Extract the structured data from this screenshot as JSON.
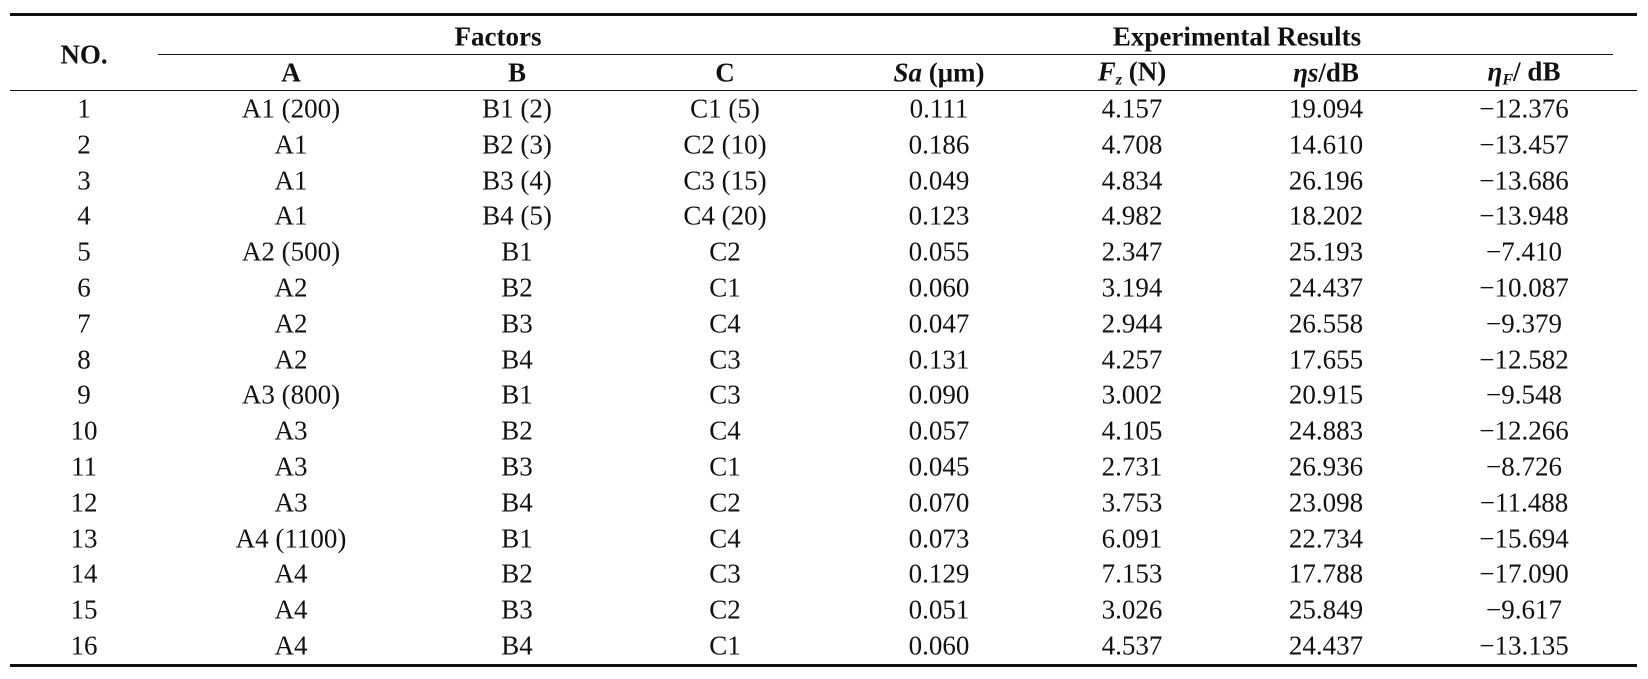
{
  "header": {
    "no": "NO.",
    "groups": [
      "Factors",
      "Experimental Results"
    ],
    "columns": [
      {
        "text": "A"
      },
      {
        "text": "B"
      },
      {
        "text": "C"
      },
      {
        "italic": "Sa",
        "text": " (μm)"
      },
      {
        "italic": "F",
        "sub": "z",
        "text": " (N)"
      },
      {
        "italic": "ηs",
        "text": "/dB"
      },
      {
        "italic": "η",
        "sub": "F",
        "text": "/ dB"
      }
    ]
  },
  "table": {
    "rows": [
      [
        "1",
        "A1 (200)",
        "B1 (2)",
        "C1 (5)",
        "0.111",
        "4.157",
        "19.094",
        "−12.376"
      ],
      [
        "2",
        "A1",
        "B2 (3)",
        "C2 (10)",
        "0.186",
        "4.708",
        "14.610",
        "−13.457"
      ],
      [
        "3",
        "A1",
        "B3 (4)",
        "C3 (15)",
        "0.049",
        "4.834",
        "26.196",
        "−13.686"
      ],
      [
        "4",
        "A1",
        "B4 (5)",
        "C4 (20)",
        "0.123",
        "4.982",
        "18.202",
        "−13.948"
      ],
      [
        "5",
        "A2 (500)",
        "B1",
        "C2",
        "0.055",
        "2.347",
        "25.193",
        "−7.410"
      ],
      [
        "6",
        "A2",
        "B2",
        "C1",
        "0.060",
        "3.194",
        "24.437",
        "−10.087"
      ],
      [
        "7",
        "A2",
        "B3",
        "C4",
        "0.047",
        "2.944",
        "26.558",
        "−9.379"
      ],
      [
        "8",
        "A2",
        "B4",
        "C3",
        "0.131",
        "4.257",
        "17.655",
        "−12.582"
      ],
      [
        "9",
        "A3 (800)",
        "B1",
        "C3",
        "0.090",
        "3.002",
        "20.915",
        "−9.548"
      ],
      [
        "10",
        "A3",
        "B2",
        "C4",
        "0.057",
        "4.105",
        "24.883",
        "−12.266"
      ],
      [
        "11",
        "A3",
        "B3",
        "C1",
        "0.045",
        "2.731",
        "26.936",
        "−8.726"
      ],
      [
        "12",
        "A3",
        "B4",
        "C2",
        "0.070",
        "3.753",
        "23.098",
        "−11.488"
      ],
      [
        "13",
        "A4 (1100)",
        "B1",
        "C4",
        "0.073",
        "6.091",
        "22.734",
        "−15.694"
      ],
      [
        "14",
        "A4",
        "B2",
        "C3",
        "0.129",
        "7.153",
        "17.788",
        "−17.090"
      ],
      [
        "15",
        "A4",
        "B3",
        "C2",
        "0.051",
        "3.026",
        "25.849",
        "−9.617"
      ],
      [
        "16",
        "A4",
        "B4",
        "C1",
        "0.060",
        "4.537",
        "24.437",
        "−13.135"
      ]
    ]
  }
}
